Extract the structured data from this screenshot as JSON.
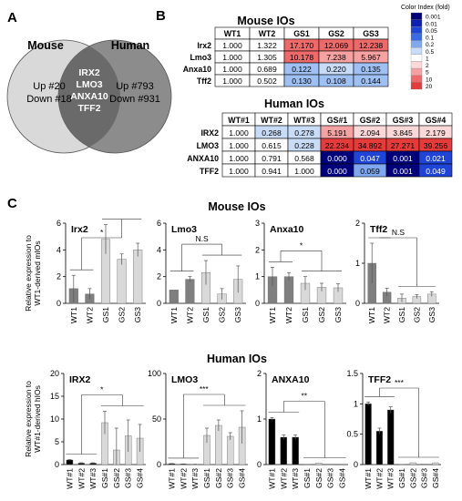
{
  "panel_labels": {
    "a": "A",
    "b": "B",
    "c": "C"
  },
  "venn": {
    "left_label": "Mouse",
    "right_label": "Human",
    "left_text": [
      "Up #20",
      "Down #18"
    ],
    "right_text": [
      "Up #793",
      "Down #931"
    ],
    "overlap_genes": [
      "IRX2",
      "LMO3",
      "ANXA10",
      "TFF2"
    ]
  },
  "color_index": {
    "title": "Color Index (fold)",
    "levels": [
      "0.001",
      "0.01",
      "0.05",
      "0.1",
      "0.2",
      "0.5",
      "1",
      "2",
      "5",
      "10",
      "20"
    ],
    "colors": [
      "#00007a",
      "#0b1fb0",
      "#1f45d8",
      "#3b6ae6",
      "#7fa8ef",
      "#c8dcf7",
      "#ffffff",
      "#fbd8d8",
      "#f6a2a2",
      "#ee6a6a",
      "#e63b3b"
    ]
  },
  "mouse_table": {
    "title": "Mouse IOs",
    "columns": [
      "WT1",
      "WT2",
      "GS1",
      "GS2",
      "GS3"
    ],
    "rows": [
      {
        "gene": "Irx2",
        "values": [
          "1.000",
          "1.322",
          "17.170",
          "12.069",
          "12.238"
        ]
      },
      {
        "gene": "Lmo3",
        "values": [
          "1.000",
          "1.305",
          "10.178",
          "7.238",
          "5.967"
        ]
      },
      {
        "gene": "Anxa10",
        "values": [
          "1.000",
          "0.689",
          "0.122",
          "0.220",
          "0.135"
        ]
      },
      {
        "gene": "Tff2",
        "values": [
          "1.000",
          "0.502",
          "0.130",
          "0.108",
          "0.144"
        ]
      }
    ]
  },
  "human_table": {
    "title": "Human IOs",
    "columns": [
      "WT#1",
      "WT#2",
      "WT#3",
      "GS#1",
      "GS#2",
      "GS#3",
      "GS#4"
    ],
    "rows": [
      {
        "gene": "IRX2",
        "values": [
          "1.000",
          "0.268",
          "0.278",
          "5.191",
          "2.094",
          "3.845",
          "2.179"
        ]
      },
      {
        "gene": "LMO3",
        "values": [
          "1.000",
          "0.615",
          "0.228",
          "22.234",
          "34.892",
          "27.271",
          "39.256"
        ]
      },
      {
        "gene": "ANXA10",
        "values": [
          "1.000",
          "0.791",
          "0.568",
          "0.000",
          "0.047",
          "0.001",
          "0.021"
        ]
      },
      {
        "gene": "TFF2",
        "values": [
          "1.000",
          "0.941",
          "1.000",
          "0.000",
          "0.059",
          "0.001",
          "0.049"
        ]
      }
    ]
  },
  "section_titles": {
    "mouse": "Mouse IOs",
    "human": "Human IOs"
  },
  "y_labels": {
    "mouse": [
      "Relative expression to",
      "WT1-derived mIOs"
    ],
    "human": [
      "Relative expression to",
      "WT#1-derived hIOs"
    ]
  },
  "chart_data": [
    {
      "type": "bar",
      "title": "Irx2",
      "categories": [
        "WT1",
        "WT2",
        "GS1",
        "GS2",
        "GS3"
      ],
      "values": [
        1.1,
        0.7,
        4.8,
        3.3,
        4.0
      ],
      "errors": [
        1.0,
        0.4,
        1.1,
        0.4,
        0.5
      ],
      "colors": [
        "#7f7f7f",
        "#7f7f7f",
        "#d9d9d9",
        "#d9d9d9",
        "#d9d9d9"
      ],
      "ylim": [
        0,
        6
      ],
      "yticks": [
        0,
        2,
        4,
        6
      ],
      "significance": "*"
    },
    {
      "type": "bar",
      "title": "Lmo3",
      "categories": [
        "WT1",
        "WT2",
        "GS1",
        "GS2",
        "GS3"
      ],
      "values": [
        1.0,
        1.8,
        2.3,
        0.7,
        1.8
      ],
      "errors": [
        0.0,
        0.2,
        0.9,
        0.4,
        1.0
      ],
      "colors": [
        "#7f7f7f",
        "#7f7f7f",
        "#d9d9d9",
        "#d9d9d9",
        "#d9d9d9"
      ],
      "ylim": [
        0,
        6
      ],
      "yticks": [
        0,
        2,
        4,
        6
      ],
      "significance": "N.S"
    },
    {
      "type": "bar",
      "title": "Anxa10",
      "categories": [
        "WT1",
        "WT2",
        "GS1",
        "GS2",
        "GS3"
      ],
      "values": [
        1.0,
        1.0,
        0.75,
        0.6,
        0.58
      ],
      "errors": [
        0.35,
        0.15,
        0.25,
        0.15,
        0.15
      ],
      "colors": [
        "#7f7f7f",
        "#7f7f7f",
        "#d9d9d9",
        "#d9d9d9",
        "#d9d9d9"
      ],
      "ylim": [
        0,
        3
      ],
      "yticks": [
        0,
        1,
        2,
        3
      ],
      "significance": "*"
    },
    {
      "type": "bar",
      "title": "Tff2",
      "categories": [
        "WT1",
        "WT2",
        "GS1",
        "GS2",
        "GS3"
      ],
      "values": [
        1.0,
        0.28,
        0.13,
        0.17,
        0.23
      ],
      "errors": [
        0.5,
        0.1,
        0.1,
        0.05,
        0.06
      ],
      "colors": [
        "#7f7f7f",
        "#7f7f7f",
        "#d9d9d9",
        "#d9d9d9",
        "#d9d9d9"
      ],
      "ylim": [
        0,
        2
      ],
      "yticks": [
        0,
        1,
        2
      ],
      "significance": "N.S"
    },
    {
      "type": "bar",
      "title": "IRX2",
      "categories": [
        "WT#1",
        "WT#2",
        "WT#3",
        "GS#1",
        "GS#2",
        "GS#3",
        "GS#4"
      ],
      "values": [
        1.0,
        0.3,
        0.3,
        9.2,
        3.2,
        6.3,
        5.8
      ],
      "errors": [
        0.1,
        0.1,
        0.1,
        2.5,
        4.8,
        3.5,
        3.0
      ],
      "colors": [
        "#000000",
        "#000000",
        "#000000",
        "#d9d9d9",
        "#d9d9d9",
        "#d9d9d9",
        "#d9d9d9"
      ],
      "ylim": [
        0,
        20
      ],
      "yticks": [
        0,
        5,
        10,
        15,
        20
      ],
      "significance": "*"
    },
    {
      "type": "bar",
      "title": "LMO3",
      "categories": [
        "WT#1",
        "WT#2",
        "WT#3",
        "GS#1",
        "GS#2",
        "GS#3",
        "GS#4"
      ],
      "values": [
        1.0,
        0.6,
        0.3,
        32,
        43,
        31,
        41
      ],
      "errors": [
        0.1,
        0.1,
        0.1,
        8,
        6,
        4,
        18
      ],
      "colors": [
        "#000000",
        "#000000",
        "#000000",
        "#d9d9d9",
        "#d9d9d9",
        "#d9d9d9",
        "#d9d9d9"
      ],
      "ylim": [
        0,
        100
      ],
      "yticks": [
        0,
        50,
        100
      ],
      "significance": "***"
    },
    {
      "type": "bar",
      "title": "ANXA10",
      "categories": [
        "WT#1",
        "WT#2",
        "WT#3",
        "GS#1",
        "GS#2",
        "GS#3",
        "GS#4"
      ],
      "values": [
        1.0,
        0.6,
        0.6,
        0.001,
        0.03,
        0.01,
        0.01
      ],
      "errors": [
        0.03,
        0.05,
        0.05,
        0.0,
        0.0,
        0.0,
        0.0
      ],
      "colors": [
        "#000000",
        "#000000",
        "#000000",
        "#d9d9d9",
        "#d9d9d9",
        "#d9d9d9",
        "#d9d9d9"
      ],
      "ylim": [
        0,
        2
      ],
      "yticks": [
        0,
        1,
        2
      ],
      "significance": "**"
    },
    {
      "type": "bar",
      "title": "TFF2",
      "categories": [
        "WT#1",
        "WT#2",
        "WT#3",
        "GS#1",
        "GS#2",
        "GS#3",
        "GS#4"
      ],
      "values": [
        1.0,
        0.55,
        0.9,
        0.001,
        0.03,
        0.01,
        0.03
      ],
      "errors": [
        0.03,
        0.05,
        0.05,
        0.0,
        0.0,
        0.0,
        0.0
      ],
      "colors": [
        "#000000",
        "#000000",
        "#000000",
        "#d9d9d9",
        "#d9d9d9",
        "#d9d9d9",
        "#d9d9d9"
      ],
      "ylim": [
        0,
        1.5
      ],
      "yticks": [
        0,
        0.5,
        1,
        1.5
      ],
      "significance": "***"
    }
  ]
}
